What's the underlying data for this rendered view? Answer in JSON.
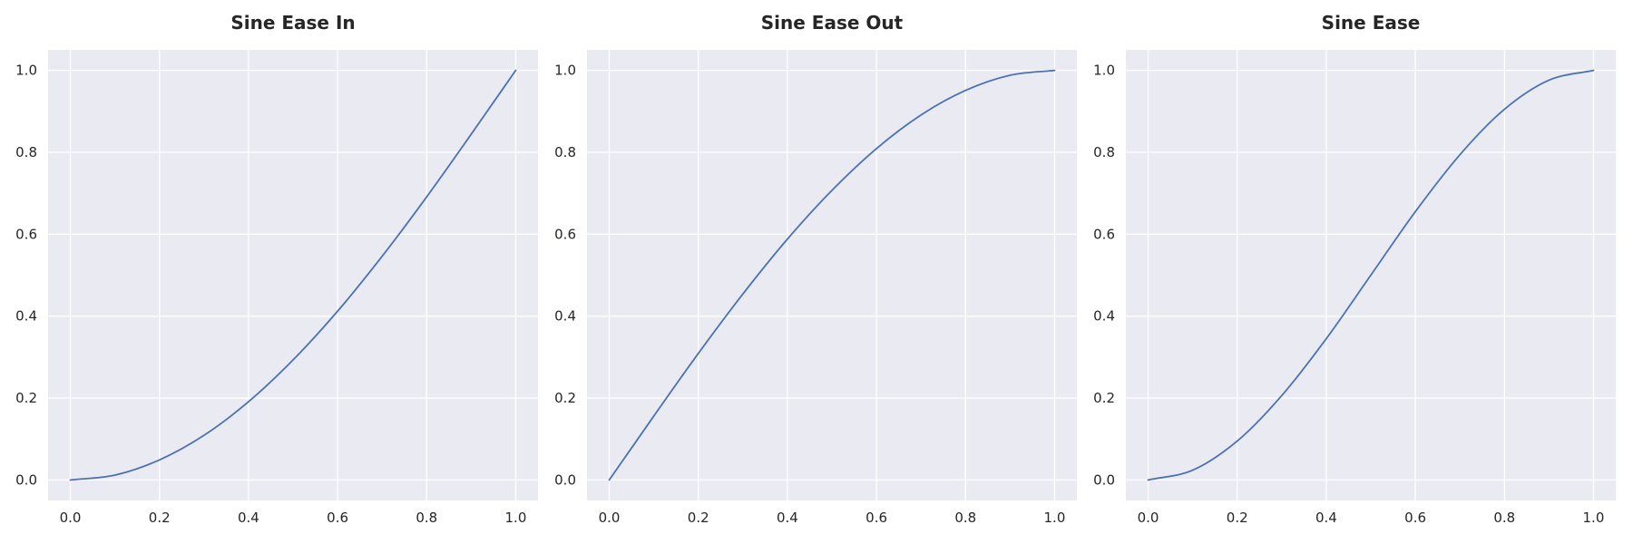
{
  "chart_data": [
    {
      "type": "line",
      "title": "Sine Ease In",
      "xlabel": "",
      "ylabel": "",
      "xlim": [
        -0.05,
        1.05
      ],
      "ylim": [
        -0.05,
        1.05
      ],
      "x_ticks": [
        "0.0",
        "0.2",
        "0.4",
        "0.6",
        "0.8",
        "1.0"
      ],
      "y_ticks": [
        "0.0",
        "0.2",
        "0.4",
        "0.6",
        "0.8",
        "1.0"
      ],
      "grid": true,
      "series": [
        {
          "x": [
            0.0,
            0.1,
            0.2,
            0.3,
            0.4,
            0.5,
            0.6,
            0.7,
            0.8,
            0.9,
            1.0
          ],
          "y": [
            0.0,
            0.012,
            0.049,
            0.109,
            0.191,
            0.293,
            0.412,
            0.546,
            0.691,
            0.844,
            1.0
          ]
        }
      ]
    },
    {
      "type": "line",
      "title": "Sine Ease Out",
      "xlabel": "",
      "ylabel": "",
      "xlim": [
        -0.05,
        1.05
      ],
      "ylim": [
        -0.05,
        1.05
      ],
      "x_ticks": [
        "0.0",
        "0.2",
        "0.4",
        "0.6",
        "0.8",
        "1.0"
      ],
      "y_ticks": [
        "0.0",
        "0.2",
        "0.4",
        "0.6",
        "0.8",
        "1.0"
      ],
      "grid": true,
      "series": [
        {
          "x": [
            0.0,
            0.1,
            0.2,
            0.3,
            0.4,
            0.5,
            0.6,
            0.7,
            0.8,
            0.9,
            1.0
          ],
          "y": [
            0.0,
            0.156,
            0.309,
            0.454,
            0.588,
            0.707,
            0.809,
            0.891,
            0.951,
            0.988,
            1.0
          ]
        }
      ]
    },
    {
      "type": "line",
      "title": "Sine Ease",
      "xlabel": "",
      "ylabel": "",
      "xlim": [
        -0.05,
        1.05
      ],
      "ylim": [
        -0.05,
        1.05
      ],
      "x_ticks": [
        "0.0",
        "0.2",
        "0.4",
        "0.6",
        "0.8",
        "1.0"
      ],
      "y_ticks": [
        "0.0",
        "0.2",
        "0.4",
        "0.6",
        "0.8",
        "1.0"
      ],
      "grid": true,
      "series": [
        {
          "x": [
            0.0,
            0.1,
            0.2,
            0.3,
            0.4,
            0.5,
            0.6,
            0.7,
            0.8,
            0.9,
            1.0
          ],
          "y": [
            0.0,
            0.024,
            0.095,
            0.206,
            0.345,
            0.5,
            0.655,
            0.794,
            0.905,
            0.976,
            1.0
          ]
        }
      ]
    }
  ],
  "colors": {
    "line": "#4c72b0",
    "panel_background": "#eaeaf2",
    "grid": "#ffffff",
    "text": "#262626"
  }
}
